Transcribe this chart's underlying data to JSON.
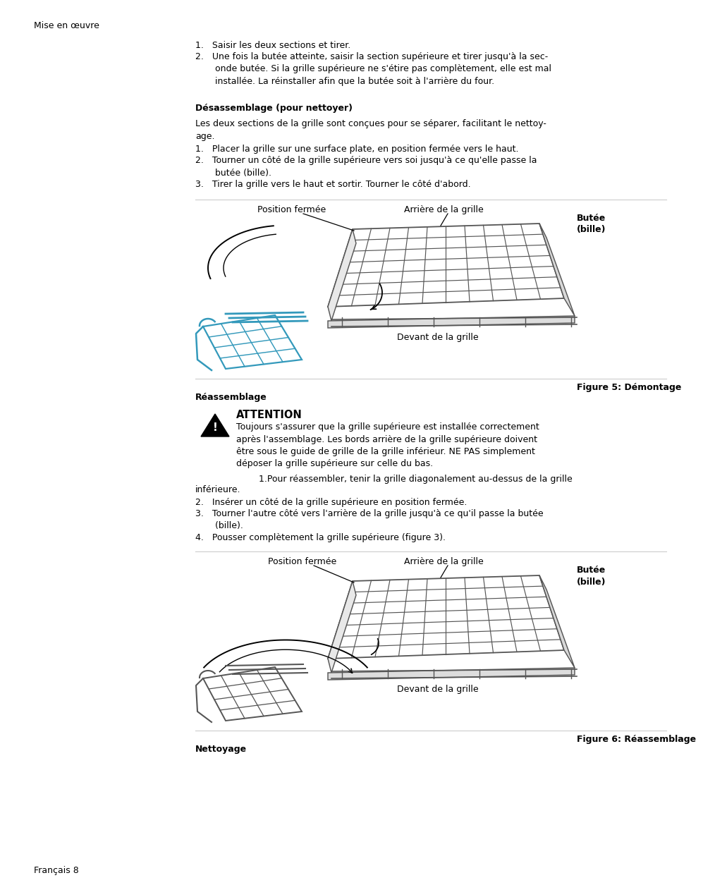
{
  "bg_color": "#ffffff",
  "text_color": "#000000",
  "header_text": "Mise en œuvre",
  "footer_text": "Français 8",
  "section1_items": [
    "1.   Saisir les deux sections et tirer.",
    "2.   Une fois la butée atteinte, saisir la section supérieure et tirer jusqu'à la sec-\n       onde butée. Si la grille supérieure ne s'étire pas complètement, elle est mal\n       installée. La réinstaller afin que la butée soit à l'arrière du four."
  ],
  "desassemblage_title": "Désassemblage (pour nettoyer)",
  "desassemblage_intro": "Les deux sections de la grille sont conçues pour se séparer, facilitant le nettoy-\nage.",
  "desassemblage_items": [
    "1.   Placer la grille sur une surface plate, en position fermée vers le haut.",
    "2.   Tourner un côté de la grille supérieure vers soi jusqu'à ce qu'elle passe la\n       butée (bille).",
    "3.   Tirer la grille vers le haut et sortir. Tourner le côté d'abord."
  ],
  "fig5_caption": "Figure 5: Démontage",
  "fig5_pos_fermee": "Position fermée",
  "fig5_arriere": "Arrière de la grille",
  "fig5_butee": "Butée\n(bille)",
  "fig5_devant": "Devant de la grille",
  "reassemblage_title": "Réassemblage",
  "attention_title": "ATTENTION",
  "attention_body": "Toujours s'assurer que la grille supérieure est installée correctement\naprès l'assemblage. Les bords arrière de la grille supérieure doivent\nêtre sous le guide de grille de la grille inférieur. NE PAS simplement\ndéposer la grille supérieure sur celle du bas.",
  "reassemblage_p1": "        1.Pour réassembler, tenir la grille diagonalement au-dessus de la grille",
  "reassemblage_p1b": "inférieure.",
  "reassemblage_items": [
    "2.   Insérer un côté de la grille supérieure en position fermée.",
    "3.   Tourner l'autre côté vers l'arrière de la grille jusqu'à ce qu'il passe la butée\n       (bille).",
    "4.   Pousser complètement la grille supérieure (figure 3)."
  ],
  "fig6_caption": "Figure 6: Réassemblage",
  "fig6_pos_fermee": "Position fermée",
  "fig6_arriere": "Arrière de la grille",
  "fig6_butee": "Butée\n(bille)",
  "fig6_devant": "Devant de la grille",
  "nettoyage_title": "Nettoyage",
  "rack_color": "#555555",
  "blue_color": "#3399bb",
  "line_color": "#cccccc",
  "line_lw": 0.8,
  "rack_lw": 1.3
}
